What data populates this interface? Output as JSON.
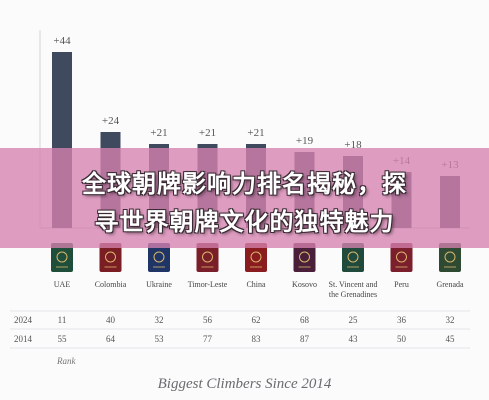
{
  "chart_data": {
    "type": "bar",
    "title": "Biggest Climbers Since 2014",
    "categories": [
      "UAE",
      "Colombia",
      "Ukraine",
      "Timor-Leste",
      "China",
      "Kosovo",
      "St. Vincent and the Grenadines",
      "Peru",
      "Grenada"
    ],
    "category_lines": [
      [
        "UAE"
      ],
      [
        "Colombia"
      ],
      [
        "Ukraine"
      ],
      [
        "Timor-Leste"
      ],
      [
        "China"
      ],
      [
        "Kosovo"
      ],
      [
        "St. Vincent and",
        "the Grenadines"
      ],
      [
        "Peru"
      ],
      [
        "Grenada"
      ]
    ],
    "series": [
      {
        "values": [
          44,
          24,
          21,
          21,
          21,
          19,
          18,
          14,
          13
        ]
      }
    ],
    "value_labels": [
      "+44",
      "+24",
      "+21",
      "+21",
      "+21",
      "+19",
      "+18",
      "+14",
      "+13"
    ],
    "bar_color": "#3f4a5e",
    "ylim": [
      0,
      46
    ],
    "grid": false,
    "table": {
      "rows": [
        {
          "label": "2024",
          "values": [
            "11",
            "40",
            "32",
            "56",
            "62",
            "68",
            "25",
            "36",
            "32"
          ]
        },
        {
          "label": "2014",
          "values": [
            "55",
            "64",
            "53",
            "77",
            "83",
            "87",
            "43",
            "50",
            "45"
          ]
        }
      ],
      "caption": "Rank"
    },
    "passport_colors": [
      "#1f4e3a",
      "#7a1e24",
      "#1e3566",
      "#7a1e2a",
      "#8a1c1f",
      "#4a1f3a",
      "#1f4a3c",
      "#7a1f2b",
      "#2f4a33"
    ]
  },
  "overlay": {
    "line1": "全球朝牌影响力排名揭秘，探",
    "line2": "寻世界朝牌文化的独特魅力"
  }
}
